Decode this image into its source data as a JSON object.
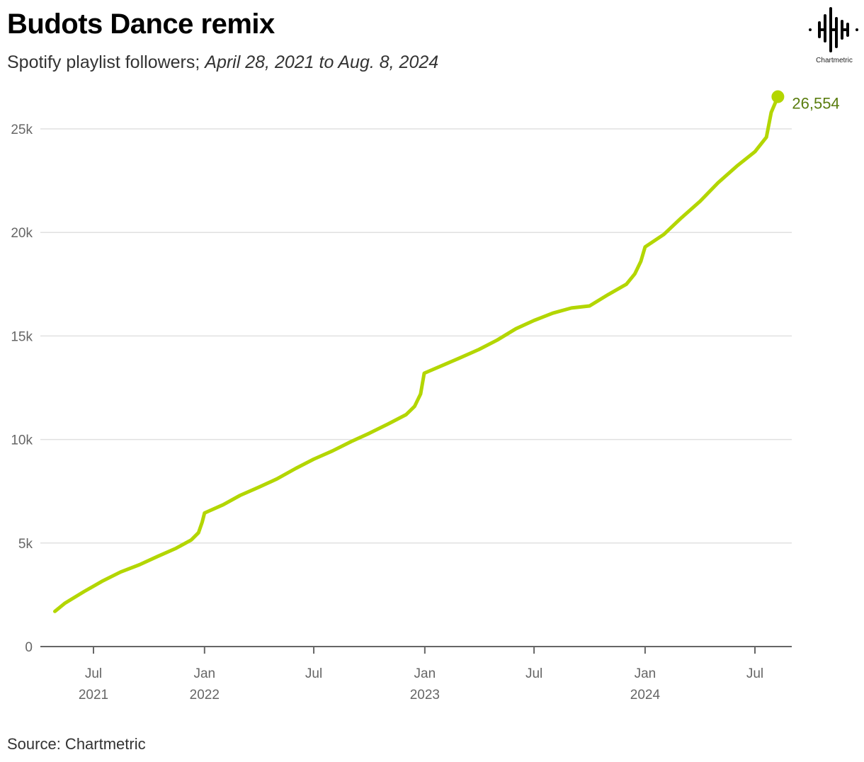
{
  "header": {
    "title": "Budots Dance remix",
    "subtitle_prefix": "Spotify playlist followers; ",
    "subtitle_range": "April 28, 2021 to Aug. 8, 2024"
  },
  "logo": {
    "icon": "chartmetric-waveform-icon",
    "label": "Chartmetric"
  },
  "footer": {
    "source": "Source: Chartmetric"
  },
  "colors": {
    "line": "#b3d600",
    "end_label": "#5a7d0f",
    "grid": "#e0e0e0",
    "axis": "#666666"
  },
  "chart_data": {
    "type": "line",
    "title": "Budots Dance remix",
    "subtitle": "Spotify playlist followers; April 28, 2021 to Aug. 8, 2024",
    "xlabel": "",
    "ylabel": "",
    "ylim": [
      0,
      27000
    ],
    "yticks": [
      {
        "value": 0,
        "label": "0"
      },
      {
        "value": 5000,
        "label": "5k"
      },
      {
        "value": 10000,
        "label": "10k"
      },
      {
        "value": 15000,
        "label": "15k"
      },
      {
        "value": 20000,
        "label": "20k"
      },
      {
        "value": 25000,
        "label": "25k"
      }
    ],
    "xticks": [
      {
        "date": "2021-07-01",
        "label": "Jul",
        "year": "2021"
      },
      {
        "date": "2022-01-01",
        "label": "Jan",
        "year": "2022"
      },
      {
        "date": "2022-07-01",
        "label": "Jul",
        "year": ""
      },
      {
        "date": "2023-01-01",
        "label": "Jan",
        "year": "2023"
      },
      {
        "date": "2023-07-01",
        "label": "Jul",
        "year": ""
      },
      {
        "date": "2024-01-01",
        "label": "Jan",
        "year": "2024"
      },
      {
        "date": "2024-07-01",
        "label": "Jul",
        "year": ""
      }
    ],
    "grid": true,
    "legend": "none",
    "series": [
      {
        "name": "Spotify playlist followers",
        "points": [
          [
            "2021-04-28",
            1700
          ],
          [
            "2021-05-15",
            2100
          ],
          [
            "2021-06-15",
            2650
          ],
          [
            "2021-07-15",
            3150
          ],
          [
            "2021-08-15",
            3600
          ],
          [
            "2021-09-15",
            3950
          ],
          [
            "2021-10-15",
            4350
          ],
          [
            "2021-11-15",
            4750
          ],
          [
            "2021-12-10",
            5150
          ],
          [
            "2021-12-22",
            5500
          ],
          [
            "2021-12-28",
            6000
          ],
          [
            "2022-01-01",
            6450
          ],
          [
            "2022-02-01",
            6850
          ],
          [
            "2022-03-01",
            7300
          ],
          [
            "2022-04-01",
            7700
          ],
          [
            "2022-05-01",
            8100
          ],
          [
            "2022-06-01",
            8600
          ],
          [
            "2022-07-01",
            9050
          ],
          [
            "2022-08-01",
            9450
          ],
          [
            "2022-09-01",
            9900
          ],
          [
            "2022-10-01",
            10300
          ],
          [
            "2022-11-01",
            10750
          ],
          [
            "2022-12-01",
            11200
          ],
          [
            "2022-12-15",
            11600
          ],
          [
            "2022-12-25",
            12200
          ],
          [
            "2022-12-31",
            13200
          ],
          [
            "2023-02-01",
            13600
          ],
          [
            "2023-03-01",
            13950
          ],
          [
            "2023-04-01",
            14350
          ],
          [
            "2023-05-01",
            14800
          ],
          [
            "2023-06-01",
            15350
          ],
          [
            "2023-07-01",
            15750
          ],
          [
            "2023-08-01",
            16100
          ],
          [
            "2023-09-01",
            16350
          ],
          [
            "2023-10-01",
            16450
          ],
          [
            "2023-11-01",
            17000
          ],
          [
            "2023-12-01",
            17500
          ],
          [
            "2023-12-15",
            18000
          ],
          [
            "2023-12-25",
            18600
          ],
          [
            "2024-01-01",
            19300
          ],
          [
            "2024-02-01",
            19900
          ],
          [
            "2024-03-01",
            20700
          ],
          [
            "2024-04-01",
            21500
          ],
          [
            "2024-05-01",
            22400
          ],
          [
            "2024-06-01",
            23200
          ],
          [
            "2024-07-01",
            23900
          ],
          [
            "2024-07-20",
            24600
          ],
          [
            "2024-07-28",
            25800
          ],
          [
            "2024-08-08",
            26554
          ]
        ]
      }
    ],
    "annotations": [
      {
        "date": "2024-08-08",
        "value": 26554,
        "label": "26,554"
      }
    ]
  }
}
